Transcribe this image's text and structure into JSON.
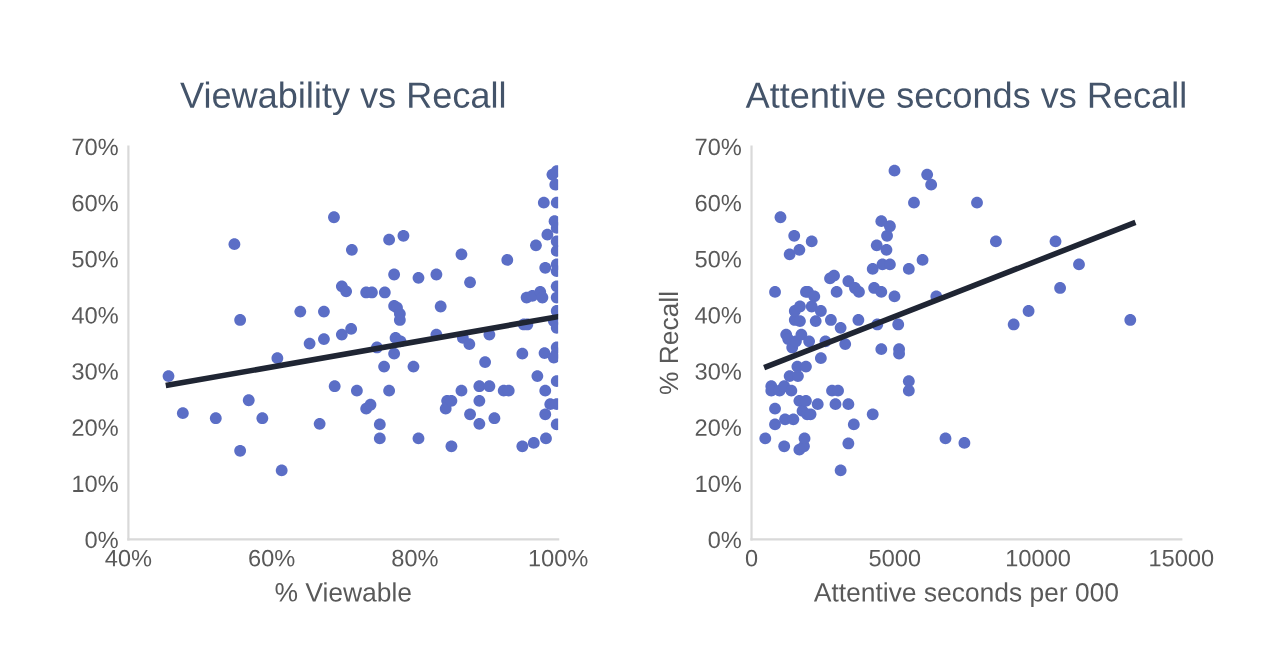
{
  "chart_data": [
    {
      "type": "scatter",
      "title": "Viewability vs Recall",
      "xlabel": "% Viewable",
      "legend": false,
      "grid": false,
      "xlim": [
        40,
        100
      ],
      "xticks": [
        {
          "value": 40,
          "label": "40%"
        },
        {
          "value": 60,
          "label": "60%"
        },
        {
          "value": 80,
          "label": "80%"
        },
        {
          "value": 100,
          "label": "100%"
        }
      ],
      "ylim": [
        0,
        70
      ],
      "yticks": [
        {
          "value": 0,
          "label": "0%"
        },
        {
          "value": 10,
          "label": "10%"
        },
        {
          "value": 20,
          "label": "20%"
        },
        {
          "value": 30,
          "label": "30%"
        },
        {
          "value": 40,
          "label": "40%"
        },
        {
          "value": 50,
          "label": "50%"
        },
        {
          "value": 60,
          "label": "60%"
        },
        {
          "value": 70,
          "label": "70%"
        }
      ],
      "series": [
        {
          "color": "#5b6ec6",
          "marker": "circle",
          "x": [
            45.6,
            47.6,
            52.2,
            54.8,
            55.6,
            55.6,
            56.8,
            58.7,
            60.8,
            61.4,
            64.0,
            65.3,
            66.7,
            67.3,
            67.3,
            68.7,
            68.8,
            69.8,
            70.4,
            69.8,
            71.1,
            71.2,
            71.9,
            73.2,
            74.0,
            73.2,
            73.8,
            74.7,
            75.1,
            75.1,
            75.8,
            75.7,
            76.4,
            76.4,
            77.1,
            77.1,
            77.3,
            77.1,
            77.5,
            77.9,
            77.9,
            78.0,
            78.4,
            79.8,
            80.5,
            80.5,
            83.0,
            83.0,
            83.6,
            84.5,
            84.3,
            85.1,
            85.1,
            86.5,
            86.5,
            86.7,
            87.6,
            87.7,
            87.7,
            89.0,
            89.0,
            89.0,
            89.8,
            90.4,
            90.4,
            91.1,
            92.4,
            93.1,
            92.9,
            95.0,
            95.0,
            95.2,
            95.7,
            95.6,
            96.4,
            96.6,
            96.9,
            97.1,
            97.5,
            97.8,
            98.0,
            98.2,
            98.2,
            98.1,
            98.2,
            98.3,
            98.5,
            98.9,
            99.2,
            99.5,
            99.4,
            99.6,
            99.8,
            99.8,
            99.8,
            99.8,
            99.8,
            99.8,
            99.8,
            99.8,
            99.8,
            99.8,
            99.8,
            99.8,
            99.8,
            99.8,
            99.8,
            99.8,
            99.4
          ],
          "values": [
            29.1,
            22.5,
            21.6,
            52.6,
            39.1,
            15.8,
            24.8,
            21.6,
            32.3,
            12.3,
            40.6,
            34.9,
            20.6,
            40.6,
            35.7,
            57.4,
            27.3,
            45.1,
            44.2,
            36.5,
            37.5,
            51.6,
            26.5,
            44.0,
            44.0,
            23.3,
            24.0,
            34.2,
            18.0,
            20.5,
            44.0,
            30.8,
            26.5,
            53.4,
            47.2,
            41.6,
            35.9,
            33.1,
            41.3,
            40.2,
            39.1,
            35.3,
            54.1,
            30.8,
            18.0,
            46.6,
            47.2,
            36.5,
            41.5,
            24.7,
            23.3,
            24.7,
            16.6,
            50.8,
            26.5,
            35.9,
            34.8,
            45.8,
            22.3,
            24.7,
            27.3,
            20.6,
            31.6,
            36.5,
            27.3,
            21.6,
            26.5,
            26.5,
            49.8,
            33.1,
            16.6,
            38.3,
            38.3,
            43.1,
            43.4,
            17.2,
            52.4,
            29.1,
            44.1,
            43.1,
            60.0,
            26.5,
            22.3,
            33.2,
            48.4,
            18.0,
            54.3,
            24.1,
            65.0,
            56.7,
            38.9,
            63.2,
            65.6,
            60.0,
            55.5,
            53.1,
            51.4,
            49.0,
            47.8,
            45.1,
            43.1,
            40.7,
            37.7,
            34.2,
            33.2,
            28.2,
            24.1,
            20.5,
            32.4
          ]
        },
        {
          "type": "line",
          "color": "#1f2533",
          "marker": "none",
          "line_style": "solid",
          "x": [
            45.6,
            100
          ],
          "values": [
            27.5,
            39.7
          ]
        }
      ]
    },
    {
      "type": "scatter",
      "title": "Attentive seconds vs Recall",
      "xlabel": "Attentive seconds per 000",
      "ylabel": "% Recall",
      "legend": false,
      "grid": false,
      "xlim": [
        0,
        15000
      ],
      "xticks": [
        0,
        5000,
        10000,
        15000
      ],
      "ylim": [
        0,
        70
      ],
      "yticks": [
        {
          "value": 0,
          "label": "0%"
        },
        {
          "value": 10,
          "label": "10%"
        },
        {
          "value": 20,
          "label": "20%"
        },
        {
          "value": 30,
          "label": "30%"
        },
        {
          "value": 40,
          "label": "40%"
        },
        {
          "value": 50,
          "label": "50%"
        },
        {
          "value": 60,
          "label": "60%"
        },
        {
          "value": 70,
          "label": "70%"
        }
      ],
      "series": [
        {
          "color": "#5b6ec6",
          "marker": "circle",
          "x": [
            480,
            690,
            690,
            820,
            820,
            820,
            980,
            1010,
            1140,
            1140,
            1170,
            1210,
            1280,
            1330,
            1330,
            1390,
            1420,
            1460,
            1490,
            1510,
            1510,
            1550,
            1600,
            1620,
            1670,
            1670,
            1670,
            1690,
            1690,
            1740,
            1780,
            1830,
            1850,
            1900,
            1900,
            1900,
            1940,
            1970,
            2010,
            2060,
            2100,
            2100,
            2190,
            2240,
            2310,
            2420,
            2420,
            2580,
            2740,
            2770,
            2810,
            2880,
            2930,
            2970,
            3020,
            3110,
            3110,
            3270,
            3380,
            3380,
            3380,
            3570,
            3610,
            3750,
            3730,
            4230,
            4230,
            4280,
            4370,
            4390,
            4530,
            4530,
            4530,
            4570,
            4710,
            4730,
            4830,
            4830,
            4990,
            4990,
            5120,
            5150,
            5150,
            5490,
            5490,
            5490,
            5670,
            5970,
            6130,
            6270,
            6450,
            6770,
            7430,
            7870,
            8530,
            9150,
            9670,
            10610,
            10770,
            11430,
            13220
          ],
          "values": [
            18.0,
            27.3,
            26.5,
            20.5,
            23.3,
            44.1,
            26.5,
            57.4,
            27.3,
            16.6,
            21.4,
            36.5,
            35.7,
            29.1,
            50.8,
            26.5,
            34.2,
            21.4,
            54.1,
            39.1,
            40.7,
            35.3,
            30.8,
            29.1,
            51.6,
            24.7,
            16.0,
            41.5,
            38.9,
            36.5,
            22.9,
            16.6,
            18.0,
            44.1,
            30.8,
            24.7,
            22.3,
            44.1,
            35.3,
            22.3,
            53.1,
            41.5,
            43.3,
            38.9,
            24.1,
            32.3,
            40.7,
            35.3,
            46.5,
            39.1,
            26.5,
            47.0,
            24.1,
            44.1,
            26.5,
            37.7,
            12.3,
            34.8,
            24.1,
            17.1,
            46.0,
            20.5,
            44.8,
            44.1,
            39.1,
            22.3,
            48.2,
            44.8,
            52.4,
            38.3,
            33.9,
            56.7,
            44.1,
            49.0,
            51.6,
            54.1,
            55.8,
            49.0,
            65.7,
            43.3,
            38.3,
            33.9,
            33.1,
            28.2,
            26.5,
            48.2,
            60.0,
            49.8,
            65.0,
            63.2,
            43.3,
            18.0,
            17.2,
            60.0,
            53.1,
            38.3,
            40.7,
            53.1,
            44.8,
            49.0,
            39.1
          ]
        },
        {
          "type": "line",
          "color": "#1f2533",
          "marker": "none",
          "line_style": "solid",
          "x": [
            530,
            13310
          ],
          "values": [
            30.8,
            56.3
          ]
        }
      ]
    }
  ]
}
